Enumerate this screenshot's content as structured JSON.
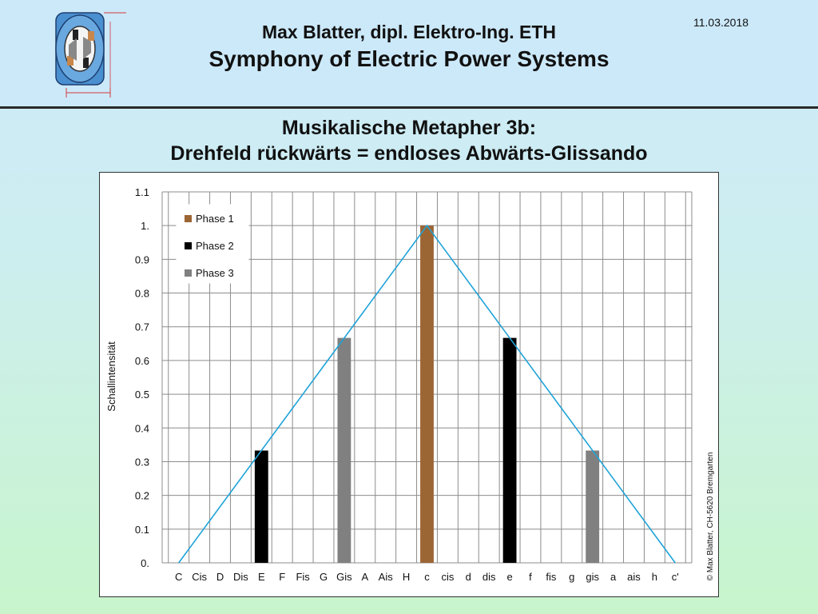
{
  "header": {
    "date": "11.03.2018",
    "author": "Max Blatter, dipl. Elektro-Ing. ETH",
    "series_title": "Symphony of Electric Power Systems",
    "logo_icon": "motor-cross-section-icon"
  },
  "slide": {
    "title_line1": "Musikalische Metapher 3b:",
    "title_line2": "Drehfeld rückwärts = endloses Abwärts-Glissando"
  },
  "copyright": "© Max Blatter, CH-5620 Bremgarten",
  "chart_data": {
    "type": "bar",
    "categories": [
      "C",
      "Cis",
      "D",
      "Dis",
      "E",
      "F",
      "Fis",
      "G",
      "Gis",
      "A",
      "Ais",
      "H",
      "c",
      "cis",
      "d",
      "dis",
      "e",
      "f",
      "fis",
      "g",
      "gis",
      "a",
      "ais",
      "h",
      "c'"
    ],
    "series": [
      {
        "name": "Phase 1",
        "color": "#9c6534",
        "values": [
          0,
          0,
          0,
          0,
          0,
          0,
          0,
          0,
          0,
          0,
          0,
          0,
          1.0,
          0,
          0,
          0,
          0,
          0,
          0,
          0,
          0,
          0,
          0,
          0,
          0
        ]
      },
      {
        "name": "Phase 2",
        "color": "#000000",
        "values": [
          0,
          0,
          0,
          0,
          0.333,
          0,
          0,
          0,
          0,
          0,
          0,
          0,
          0,
          0,
          0,
          0,
          0.667,
          0,
          0,
          0,
          0,
          0,
          0,
          0,
          0
        ]
      },
      {
        "name": "Phase 3",
        "color": "#808080",
        "values": [
          0,
          0,
          0,
          0,
          0,
          0,
          0,
          0,
          0.667,
          0,
          0,
          0,
          0,
          0,
          0,
          0,
          0,
          0,
          0,
          0,
          0.333,
          0,
          0,
          0,
          0
        ]
      }
    ],
    "envelope": {
      "color": "#1fa3d8",
      "x": [
        "C",
        "c",
        "c'"
      ],
      "y": [
        0,
        1.0,
        0
      ]
    },
    "ylabel": "Schallintensität",
    "xlabel": "",
    "ylim": [
      0,
      1.1
    ],
    "yticks": [
      "0.",
      "0.1",
      "0.2",
      "0.3",
      "0.4",
      "0.5",
      "0.6",
      "0.7",
      "0.8",
      "0.9",
      "1.",
      "1.1"
    ],
    "grid": true,
    "legend_position": "top-left"
  }
}
